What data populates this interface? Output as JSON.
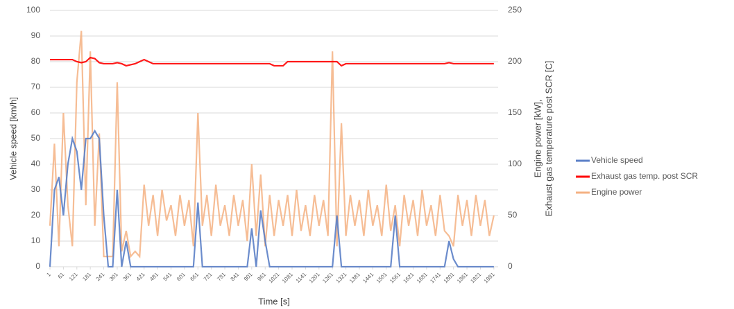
{
  "chart_data": {
    "type": "line",
    "xlabel": "Time [s]",
    "ylabel": "Vehicle speed [km/h]",
    "y2label": [
      "Engine power [kW],",
      "Exhaust gas temperature post SCR [C]"
    ],
    "x": [
      1,
      21,
      41,
      61,
      81,
      101,
      121,
      141,
      161,
      181,
      201,
      221,
      241,
      261,
      281,
      301,
      321,
      341,
      361,
      381,
      401,
      421,
      441,
      461,
      481,
      501,
      521,
      541,
      561,
      581,
      601,
      621,
      641,
      661,
      681,
      701,
      721,
      741,
      761,
      781,
      801,
      821,
      841,
      861,
      881,
      901,
      921,
      941,
      961,
      981,
      1001,
      1021,
      1041,
      1061,
      1081,
      1101,
      1121,
      1141,
      1161,
      1181,
      1201,
      1221,
      1241,
      1261,
      1281,
      1301,
      1321,
      1341,
      1361,
      1381,
      1401,
      1421,
      1441,
      1461,
      1481,
      1501,
      1521,
      1541,
      1561,
      1581,
      1601,
      1621,
      1641,
      1661,
      1681,
      1701,
      1721,
      1741,
      1761,
      1781,
      1801,
      1821,
      1841,
      1861,
      1881,
      1901,
      1921,
      1941,
      1961,
      1981
    ],
    "xlim": [
      1,
      2000
    ],
    "xticks": [
      1,
      61,
      121,
      181,
      241,
      301,
      361,
      421,
      481,
      541,
      601,
      661,
      721,
      781,
      841,
      901,
      961,
      1021,
      1081,
      1141,
      1201,
      1261,
      1321,
      1381,
      1441,
      1501,
      1561,
      1621,
      1681,
      1741,
      1801,
      1861,
      1921,
      1981
    ],
    "ylim": [
      0,
      100
    ],
    "yticks": [
      0,
      10,
      20,
      30,
      40,
      50,
      60,
      70,
      80,
      90,
      100
    ],
    "y2lim": [
      0,
      250
    ],
    "y2ticks": [
      0,
      50,
      100,
      150,
      200,
      250
    ],
    "grid": true,
    "legend": "right",
    "series": [
      {
        "name": "Engine power",
        "color": "#f4b183",
        "axis": "y2",
        "values": [
          40,
          120,
          20,
          150,
          60,
          20,
          180,
          230,
          60,
          210,
          40,
          130,
          10,
          10,
          10,
          180,
          15,
          35,
          10,
          15,
          10,
          80,
          40,
          70,
          30,
          75,
          45,
          60,
          30,
          70,
          40,
          65,
          20,
          150,
          40,
          70,
          30,
          80,
          40,
          60,
          30,
          70,
          40,
          65,
          25,
          100,
          30,
          90,
          20,
          70,
          30,
          65,
          40,
          70,
          30,
          75,
          35,
          60,
          30,
          70,
          40,
          65,
          30,
          210,
          20,
          140,
          30,
          70,
          40,
          65,
          30,
          75,
          40,
          60,
          30,
          80,
          35,
          60,
          20,
          70,
          40,
          65,
          30,
          75,
          40,
          60,
          30,
          70,
          35,
          30,
          20,
          70,
          40,
          65,
          30,
          70,
          40,
          65,
          30,
          50
        ]
      },
      {
        "name": "Vehicle speed",
        "color": "#5b7fc7",
        "values": [
          0,
          30,
          35,
          20,
          40,
          50,
          45,
          30,
          50,
          50,
          53,
          50,
          20,
          0,
          0,
          30,
          0,
          10,
          0,
          0,
          0,
          0,
          0,
          0,
          0,
          0,
          0,
          0,
          0,
          0,
          0,
          0,
          0,
          25,
          0,
          0,
          0,
          0,
          0,
          0,
          0,
          0,
          0,
          0,
          0,
          15,
          0,
          22,
          10,
          0,
          0,
          0,
          0,
          0,
          0,
          0,
          0,
          0,
          0,
          0,
          0,
          0,
          0,
          0,
          20,
          0,
          0,
          0,
          0,
          0,
          0,
          0,
          0,
          0,
          0,
          0,
          0,
          20,
          0,
          0,
          0,
          0,
          0,
          0,
          0,
          0,
          0,
          0,
          0,
          10,
          3,
          0,
          0,
          0,
          0,
          0,
          0,
          0,
          0,
          0
        ]
      },
      {
        "name": "Exhaust gas temp. post SCR",
        "color": "#ff0000",
        "axis": "y2",
        "values": [
          202,
          202,
          202,
          202,
          202,
          202,
          200,
          199,
          200,
          204,
          203,
          199,
          198,
          198,
          198,
          199,
          198,
          196,
          197,
          198,
          200,
          202,
          200,
          198,
          198,
          198,
          198,
          198,
          198,
          198,
          198,
          198,
          198,
          198,
          198,
          198,
          198,
          198,
          198,
          198,
          198,
          198,
          198,
          198,
          198,
          198,
          198,
          198,
          198,
          198,
          196,
          196,
          196,
          200,
          200,
          200,
          200,
          200,
          200,
          200,
          200,
          200,
          200,
          200,
          200,
          196,
          198,
          198,
          198,
          198,
          198,
          198,
          198,
          198,
          198,
          198,
          198,
          198,
          198,
          198,
          198,
          198,
          198,
          198,
          198,
          198,
          198,
          198,
          198,
          199,
          198,
          198,
          198,
          198,
          198,
          198,
          198,
          198,
          198,
          198
        ]
      }
    ]
  }
}
